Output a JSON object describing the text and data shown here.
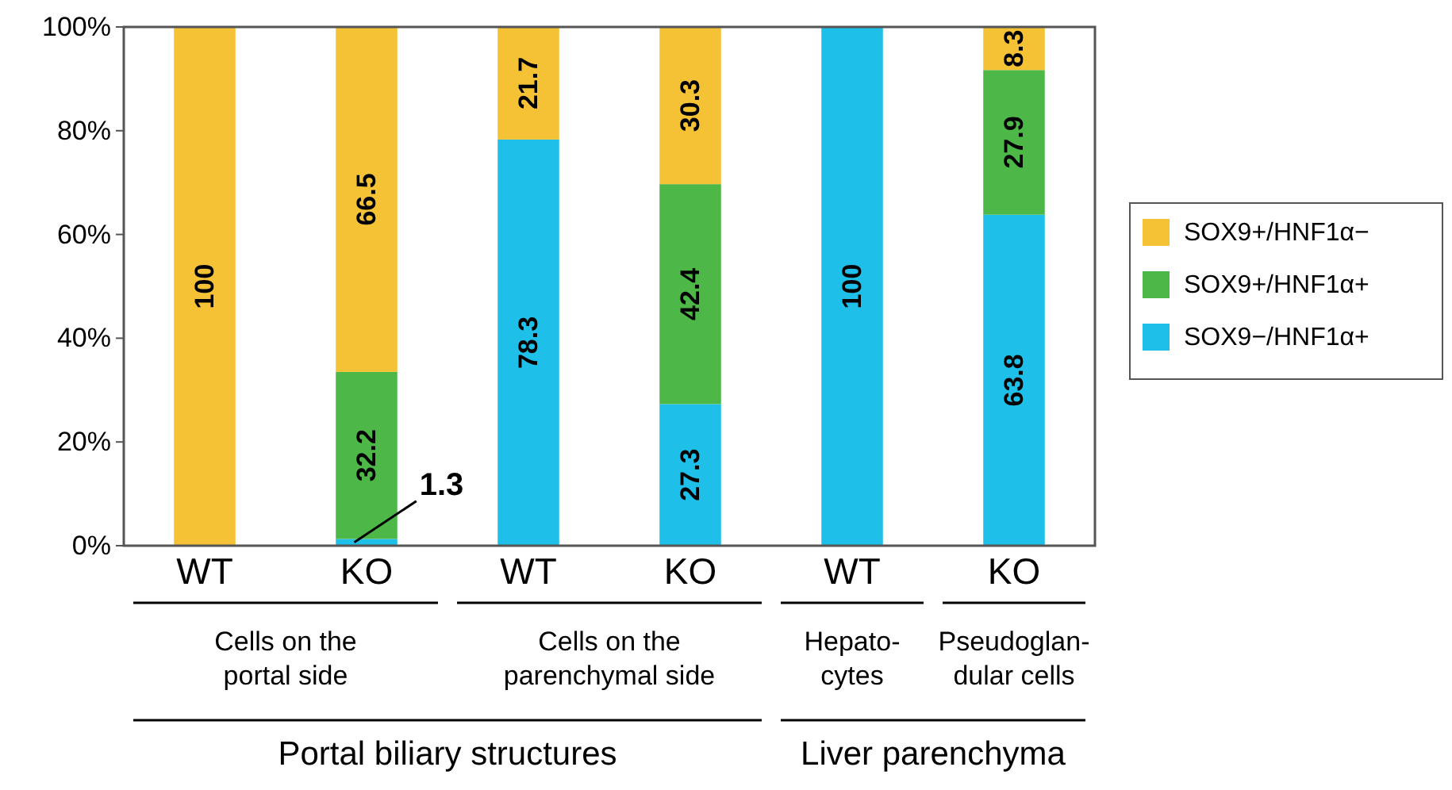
{
  "chart_data": {
    "type": "bar",
    "stacked": true,
    "categories": [
      "WT",
      "KO",
      "WT",
      "KO",
      "WT",
      "KO"
    ],
    "series": [
      {
        "name": "SOX9−/HNF1α+",
        "color": "#1ec0ea",
        "values": [
          0,
          1.3,
          78.3,
          27.3,
          100,
          63.8
        ],
        "value_labels": [
          null,
          "1.3",
          "78.3",
          "27.3",
          "100",
          "63.8"
        ]
      },
      {
        "name": "SOX9+/HNF1α+",
        "color": "#4db848",
        "values": [
          0,
          32.2,
          0,
          42.4,
          0,
          27.9
        ],
        "value_labels": [
          null,
          "32.2",
          null,
          "42.4",
          null,
          "27.9"
        ]
      },
      {
        "name": "SOX9+/HNF1α−",
        "color": "#f5c236",
        "values": [
          100,
          66.5,
          21.7,
          30.3,
          0,
          8.3
        ],
        "value_labels": [
          "100",
          "66.5",
          "21.7",
          "30.3",
          null,
          "8.3"
        ]
      }
    ],
    "ylim": [
      0,
      100
    ],
    "yticks": [
      {
        "value": 0,
        "label": "0%"
      },
      {
        "value": 20,
        "label": "20%"
      },
      {
        "value": 40,
        "label": "40%"
      },
      {
        "value": 60,
        "label": "60%"
      },
      {
        "value": 80,
        "label": "80%"
      },
      {
        "value": 100,
        "label": "100%"
      }
    ],
    "legend": "right",
    "grid": false,
    "annotations": [
      "Cells on the\nportal side",
      "Cells on the\nparenchymal side",
      "Hepato-\ncytes",
      "Pseudoglan-\ndular cells",
      "Portal biliary structures",
      "Liver parenchyma"
    ]
  }
}
